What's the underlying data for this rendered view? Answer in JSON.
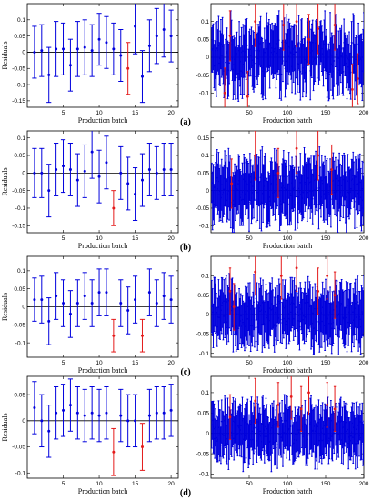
{
  "colors": {
    "normal": "#0000dd",
    "outlier": "#e41a1a",
    "axis": "#000000"
  },
  "chart_data": [
    {
      "panel": "(a)",
      "type": "errorbar",
      "left": {
        "xlabel": "Production batch",
        "ylabel": "Residuals",
        "xlim": [
          0,
          21
        ],
        "ylim": [
          -0.17,
          0.15
        ],
        "xticks": [
          5,
          10,
          15,
          20
        ],
        "yticks": [
          -0.15,
          -0.1,
          -0.05,
          0,
          0.05,
          0.1
        ],
        "yticklabels": [
          "-0.15",
          "-0.1",
          "-0.05",
          "0",
          "0.05",
          "0.1"
        ],
        "x": [
          1,
          2,
          3,
          4,
          5,
          6,
          7,
          8,
          9,
          10,
          11,
          12,
          13,
          14,
          15,
          16,
          17,
          18,
          19,
          20
        ],
        "y": [
          0.0,
          0.005,
          -0.07,
          0.01,
          0.01,
          -0.04,
          0.01,
          0.015,
          0.005,
          0.04,
          0.03,
          0.01,
          -0.01,
          -0.05,
          0.08,
          -0.075,
          0.02,
          0.05,
          0.07,
          0.05
        ],
        "err": [
          0.08,
          0.08,
          0.085,
          0.085,
          0.08,
          0.08,
          0.085,
          0.085,
          0.08,
          0.08,
          0.08,
          0.08,
          0.08,
          0.08,
          0.085,
          0.08,
          0.08,
          0.085,
          0.085,
          0.08
        ],
        "outliers": [
          14
        ]
      },
      "right": {
        "xlabel": "Production batch",
        "xlim": [
          0,
          200
        ],
        "ylim": [
          -0.14,
          0.15
        ],
        "xticks": [
          50,
          100,
          150,
          200
        ],
        "yticks": [
          -0.1,
          -0.05,
          0,
          0.05,
          0.1
        ],
        "yticklabels": [
          "-0.1",
          "-0.05",
          "0",
          "0.05",
          "0.1"
        ],
        "n": 200,
        "base_spread": 0.06,
        "err": 0.07,
        "outliers": [
          {
            "x": 18,
            "y": -0.1
          },
          {
            "x": 25,
            "y": 0.06
          },
          {
            "x": 48,
            "y": -0.11
          },
          {
            "x": 58,
            "y": 0.1
          },
          {
            "x": 95,
            "y": 0.09
          },
          {
            "x": 112,
            "y": 0.1
          },
          {
            "x": 128,
            "y": 0.05
          },
          {
            "x": 140,
            "y": 0.08
          },
          {
            "x": 162,
            "y": 0.09
          },
          {
            "x": 185,
            "y": -0.09
          },
          {
            "x": 192,
            "y": -0.06
          }
        ]
      }
    },
    {
      "panel": "(b)",
      "type": "errorbar",
      "left": {
        "xlabel": "Production batch",
        "ylabel": "Residuals",
        "xlim": [
          0,
          21
        ],
        "ylim": [
          -0.17,
          0.12
        ],
        "xticks": [
          5,
          10,
          15,
          20
        ],
        "yticks": [
          -0.15,
          -0.1,
          -0.05,
          0,
          0.05,
          0.1
        ],
        "yticklabels": [
          "-0.15",
          "-0.1",
          "-0.05",
          "0",
          "0.05",
          "0.1"
        ],
        "x": [
          1,
          2,
          3,
          4,
          5,
          6,
          7,
          8,
          9,
          10,
          11,
          12,
          13,
          14,
          15,
          16,
          17,
          18,
          19,
          20
        ],
        "y": [
          0.0,
          0.0,
          -0.05,
          0.01,
          0.02,
          0.01,
          -0.02,
          0.005,
          0.06,
          -0.01,
          0.03,
          -0.1,
          0.0,
          -0.03,
          -0.06,
          -0.02,
          0.01,
          0.0,
          0.01,
          0.01
        ],
        "err": [
          0.07,
          0.07,
          0.075,
          0.075,
          0.075,
          0.075,
          0.075,
          0.075,
          0.075,
          0.075,
          0.075,
          0.05,
          0.075,
          0.075,
          0.075,
          0.075,
          0.075,
          0.075,
          0.075,
          0.075
        ],
        "outliers": [
          12
        ]
      },
      "right": {
        "xlabel": "Production batch",
        "xlim": [
          0,
          200
        ],
        "ylim": [
          -0.12,
          0.17
        ],
        "xticks": [
          50,
          100,
          150,
          200
        ],
        "yticks": [
          -0.1,
          -0.05,
          0,
          0.05,
          0.1,
          0.15
        ],
        "yticklabels": [
          "-0.1",
          "-0.05",
          "0",
          "0.05",
          "0.1",
          "0.15"
        ],
        "n": 200,
        "base_spread": 0.055,
        "err": 0.07,
        "outliers": [
          {
            "x": 27,
            "y": 0.02
          },
          {
            "x": 58,
            "y": 0.1
          },
          {
            "x": 88,
            "y": 0.05
          },
          {
            "x": 112,
            "y": 0.12
          },
          {
            "x": 140,
            "y": 0.1
          },
          {
            "x": 158,
            "y": 0.06
          }
        ]
      }
    },
    {
      "panel": "(c)",
      "type": "errorbar",
      "left": {
        "xlabel": "Production batch",
        "ylabel": "Residuals",
        "xlim": [
          0,
          21
        ],
        "ylim": [
          -0.14,
          0.14
        ],
        "xticks": [
          5,
          10,
          15,
          20
        ],
        "yticks": [
          -0.1,
          -0.05,
          0,
          0.05,
          0.1
        ],
        "yticklabels": [
          "-0.1",
          "-0.05",
          "0",
          "0.05",
          "0.1"
        ],
        "x": [
          1,
          2,
          3,
          4,
          5,
          6,
          7,
          8,
          9,
          10,
          11,
          12,
          13,
          14,
          15,
          16,
          17,
          18,
          19,
          20
        ],
        "y": [
          0.02,
          0.02,
          -0.04,
          0.03,
          0.01,
          -0.02,
          0.01,
          0.03,
          0.01,
          0.04,
          0.04,
          -0.08,
          0.01,
          -0.01,
          0.02,
          -0.08,
          0.04,
          0.01,
          0.03,
          0.02
        ],
        "err": [
          0.06,
          0.065,
          0.065,
          0.065,
          0.065,
          0.065,
          0.065,
          0.065,
          0.065,
          0.065,
          0.065,
          0.045,
          0.065,
          0.065,
          0.065,
          0.045,
          0.065,
          0.065,
          0.065,
          0.065
        ],
        "outliers": [
          12,
          16
        ]
      },
      "right": {
        "xlabel": "Production batch",
        "xlim": [
          0,
          200
        ],
        "ylim": [
          -0.11,
          0.15
        ],
        "xticks": [
          50,
          100,
          150,
          200
        ],
        "yticks": [
          -0.1,
          -0.05,
          0,
          0.05,
          0.1
        ],
        "yticklabels": [
          "-0.1",
          "-0.05",
          "0",
          "0.05",
          "0.1"
        ],
        "n": 200,
        "base_spread": 0.045,
        "err": 0.06,
        "outliers": [
          {
            "x": 25,
            "y": 0.06
          },
          {
            "x": 30,
            "y": 0.02
          },
          {
            "x": 58,
            "y": 0.11
          },
          {
            "x": 92,
            "y": 0.1
          },
          {
            "x": 112,
            "y": 0.12
          },
          {
            "x": 140,
            "y": 0.06
          },
          {
            "x": 152,
            "y": 0.1
          },
          {
            "x": 162,
            "y": 0.05
          }
        ]
      }
    },
    {
      "panel": "(d)",
      "type": "errorbar",
      "left": {
        "xlabel": "Production batch",
        "ylabel": "Residuals",
        "xlim": [
          0,
          21
        ],
        "ylim": [
          -0.11,
          0.085
        ],
        "xticks": [
          5,
          10,
          15,
          20
        ],
        "yticks": [
          -0.1,
          -0.05,
          0,
          0.05
        ],
        "yticklabels": [
          "-0.1",
          "-0.05",
          "0",
          "0.05"
        ],
        "x": [
          1,
          2,
          3,
          4,
          5,
          6,
          7,
          8,
          9,
          10,
          11,
          12,
          13,
          14,
          15,
          16,
          17,
          18,
          19,
          20
        ],
        "y": [
          0.025,
          0.0,
          -0.02,
          0.015,
          0.02,
          0.03,
          0.015,
          0.01,
          0.015,
          0.01,
          0.015,
          -0.06,
          0.01,
          0.0,
          0.0,
          -0.05,
          0.01,
          0.015,
          0.015,
          0.02
        ],
        "err": [
          0.05,
          0.05,
          0.05,
          0.05,
          0.05,
          0.05,
          0.05,
          0.05,
          0.05,
          0.05,
          0.05,
          0.045,
          0.05,
          0.05,
          0.05,
          0.045,
          0.05,
          0.05,
          0.05,
          0.05
        ],
        "outliers": [
          12,
          16
        ]
      },
      "right": {
        "xlabel": "Production batch",
        "xlim": [
          0,
          200
        ],
        "ylim": [
          -0.11,
          0.14
        ],
        "xticks": [
          50,
          100,
          150,
          200
        ],
        "yticks": [
          -0.1,
          -0.05,
          0,
          0.05,
          0.1
        ],
        "yticklabels": [
          "-0.1",
          "-0.05",
          "0",
          "0.05",
          "0.1"
        ],
        "n": 200,
        "base_spread": 0.04,
        "err": 0.055,
        "outliers": [
          {
            "x": 25,
            "y": 0.04
          },
          {
            "x": 58,
            "y": 0.08
          },
          {
            "x": 88,
            "y": 0.07
          },
          {
            "x": 105,
            "y": 0.09
          },
          {
            "x": 118,
            "y": 0.06
          },
          {
            "x": 128,
            "y": 0.1
          },
          {
            "x": 152,
            "y": 0.07
          },
          {
            "x": 162,
            "y": 0.06
          }
        ]
      }
    }
  ]
}
